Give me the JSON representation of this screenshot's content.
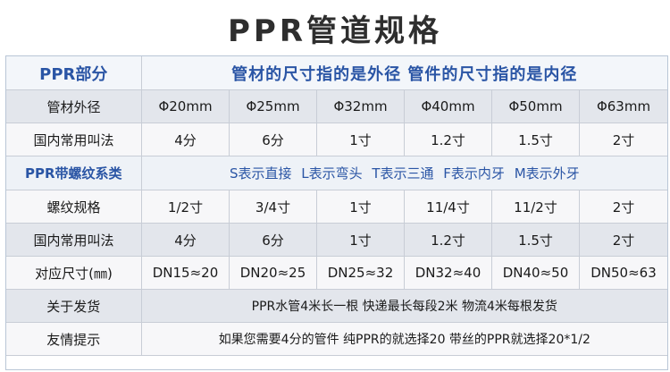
{
  "title": "PPR管道规格",
  "header_row": {
    "label": "PPR部分",
    "text": "管材的尺寸指的是外径  管件的尺寸指的是内径"
  },
  "rows_top": [
    {
      "label": "管材外径",
      "values": [
        "Φ20mm",
        "Φ25mm",
        "Φ32mm",
        "Φ40mm",
        "Φ50mm",
        "Φ63mm"
      ]
    },
    {
      "label": "国内常用叫法",
      "values": [
        "4分",
        "6分",
        "1寸",
        "1.2寸",
        "1.5寸",
        "2寸"
      ]
    }
  ],
  "thread_row": {
    "label": "PPR带螺纹系类",
    "text": "S表示直接  L表示弯头  T表示三通  F表示内牙  M表示外牙"
  },
  "rows_bottom": [
    {
      "label": "螺纹规格",
      "values": [
        "1/2寸",
        "3/4寸",
        "1寸",
        "11/4寸",
        "11/2寸",
        "2寸"
      ]
    },
    {
      "label": "国内常用叫法",
      "values": [
        "4分",
        "6分",
        "1寸",
        "1.2寸",
        "1.5寸",
        "2寸"
      ]
    },
    {
      "label": "对应尺寸(㎜)",
      "values": [
        "DN15≈20",
        "DN20≈25",
        "DN25≈32",
        "DN32≈40",
        "DN40≈50",
        "DN50≈63"
      ]
    }
  ],
  "notes": [
    {
      "label": "关于发货",
      "text": "PPR水管4米长一根  快递最长每段2米  物流4米每根发货"
    },
    {
      "label": "友情提示",
      "text": "如果您需要4分的管件  纯PPR的就选择20  带丝的PPR就选择20*1/2"
    }
  ]
}
